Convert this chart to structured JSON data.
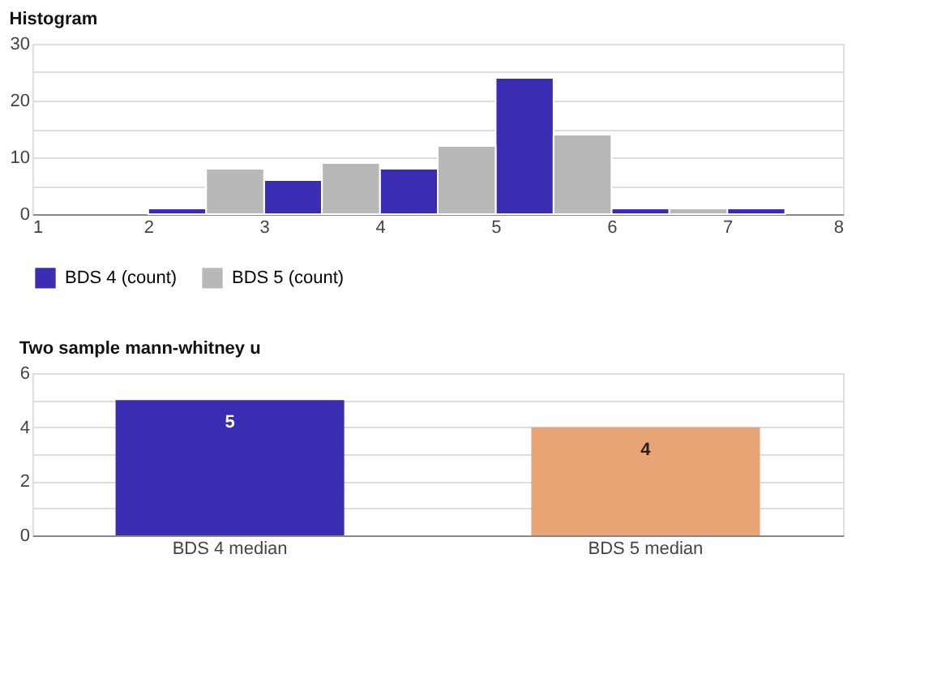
{
  "chart_data": [
    {
      "type": "histogram",
      "title": "Histogram",
      "bins": [
        2,
        2.5,
        3,
        3.5,
        4,
        4.5,
        5,
        5.5,
        6,
        6.5,
        7,
        7.5
      ],
      "series": [
        {
          "name": "BDS 4 (count)",
          "color": "#3a2db3",
          "values": [
            1,
            null,
            6,
            null,
            8,
            null,
            24,
            null,
            1,
            null,
            1
          ]
        },
        {
          "name": "BDS 5 (count)",
          "color": "#b8b8b8",
          "values": [
            null,
            8,
            null,
            9,
            null,
            12,
            null,
            14,
            null,
            1,
            null
          ]
        }
      ],
      "xlim": [
        1,
        8
      ],
      "xticks": [
        1,
        2,
        3,
        4,
        5,
        6,
        7,
        8
      ],
      "ylim": [
        0,
        30
      ],
      "yticks": [
        0,
        {
          "value": 5,
          "label": null
        },
        10,
        {
          "value": 15,
          "label": null
        },
        20,
        {
          "value": 25,
          "label": null
        },
        30
      ],
      "grid": "y",
      "legend": "bottom"
    },
    {
      "type": "bar",
      "title": "Two sample mann-whitney u",
      "categories": [
        "BDS 4 median",
        "BDS 5 median"
      ],
      "values": [
        5,
        4
      ],
      "colors": [
        "#3a2db3",
        "#e8a474"
      ],
      "ylim": [
        0,
        6
      ],
      "yticks": [
        0,
        {
          "value": 1,
          "label": null
        },
        2,
        {
          "value": 3,
          "label": null
        },
        4,
        {
          "value": 5,
          "label": null
        },
        6
      ],
      "grid": "y",
      "data_labels": true
    }
  ]
}
